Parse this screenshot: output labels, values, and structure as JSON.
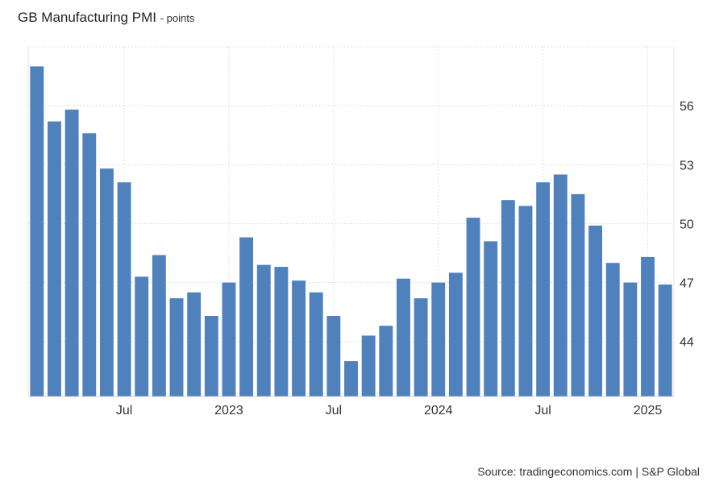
{
  "chart_data": {
    "type": "bar",
    "title": "GB Manufacturing PMI",
    "unit_label": "- points",
    "xlabel": "",
    "ylabel": "",
    "ylim": [
      41.2,
      59.0
    ],
    "y_ticks": [
      44,
      47,
      50,
      53,
      56
    ],
    "y_tick_labels": [
      "44",
      "47",
      "50",
      "53",
      "56"
    ],
    "x_tick_labels": [
      {
        "label": "Jul",
        "index": 5
      },
      {
        "label": "2023",
        "index": 11
      },
      {
        "label": "Jul",
        "index": 17
      },
      {
        "label": "2024",
        "index": 23
      },
      {
        "label": "Jul",
        "index": 29
      },
      {
        "label": "2025",
        "index": 35
      }
    ],
    "categories": [
      "Feb 2022",
      "Mar 2022",
      "Apr 2022",
      "May 2022",
      "Jun 2022",
      "Jul 2022",
      "Aug 2022",
      "Sep 2022",
      "Oct 2022",
      "Nov 2022",
      "Dec 2022",
      "Jan 2023",
      "Feb 2023",
      "Mar 2023",
      "Apr 2023",
      "May 2023",
      "Jun 2023",
      "Jul 2023",
      "Aug 2023",
      "Sep 2023",
      "Oct 2023",
      "Nov 2023",
      "Dec 2023",
      "Jan 2024",
      "Feb 2024",
      "Mar 2024",
      "Apr 2024",
      "May 2024",
      "Jun 2024",
      "Jul 2024",
      "Aug 2024",
      "Sep 2024",
      "Oct 2024",
      "Nov 2024",
      "Dec 2024",
      "Jan 2025",
      "Feb 2025"
    ],
    "values": [
      58.0,
      55.2,
      55.8,
      54.6,
      52.8,
      52.1,
      47.3,
      48.4,
      46.2,
      46.5,
      45.3,
      47.0,
      49.3,
      47.9,
      47.8,
      47.1,
      46.5,
      45.3,
      43.0,
      44.3,
      44.8,
      47.2,
      46.2,
      47.0,
      47.5,
      50.3,
      49.1,
      51.2,
      50.9,
      52.1,
      52.5,
      51.5,
      49.9,
      48.0,
      47.0,
      48.3,
      46.9
    ],
    "bar_color": "#4f81bd",
    "grid": true
  },
  "source_text": "Source: tradingeconomics.com | S&P Global"
}
